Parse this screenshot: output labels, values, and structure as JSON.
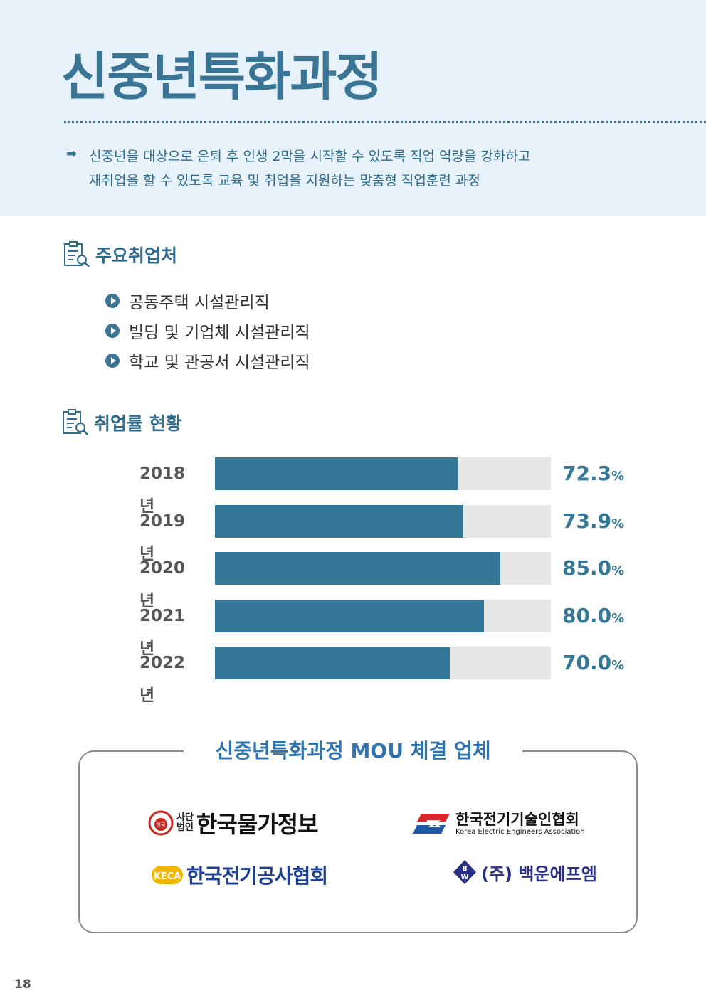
{
  "header": {
    "title": "신중년특화과정",
    "intro_lines": [
      "신중년을 대상으로 은퇴 후  인생 2막을 시작할 수 있도록 직업 역량을 강화하고",
      "재취업을 할 수 있도록 교육 및 취업을 지원하는 맞춤형 직업훈련 과정"
    ]
  },
  "employers": {
    "heading": "주요취업처",
    "items": [
      "공동주택 시설관리직",
      "빌딩 및 기업체 시설관리직",
      "학교 및 관공서 시설관리직"
    ]
  },
  "employment": {
    "heading": "취업률 현황"
  },
  "chart_data": {
    "type": "bar",
    "orientation": "horizontal",
    "categories": [
      "2018년",
      "2019년",
      "2020년",
      "2021년",
      "2022년"
    ],
    "values": [
      72.3,
      73.9,
      85.0,
      80.0,
      70.0
    ],
    "value_labels": [
      "72.3",
      "73.9",
      "85.0",
      "80.0",
      "70.0"
    ],
    "unit": "%",
    "xlim": [
      0,
      100
    ],
    "colors": {
      "bar": "#347796",
      "track": "#e6e6e6"
    }
  },
  "mou": {
    "title": "신중년특화과정 MOU 체결 업체",
    "logos": [
      {
        "name": "한국물가정보",
        "prefix_top": "사단",
        "prefix_bottom": "법인",
        "emblem_text": "한국"
      },
      {
        "name": "한국전기기술인협회",
        "subtitle": "Korea Electric Engineers Association"
      },
      {
        "name": "한국전기공사협회",
        "emblem_text": "KECA"
      },
      {
        "name": "(주) 백운에프엠",
        "emblem_top": "B",
        "emblem_bottom": "W"
      }
    ]
  },
  "footer": {
    "page_number": "18"
  }
}
